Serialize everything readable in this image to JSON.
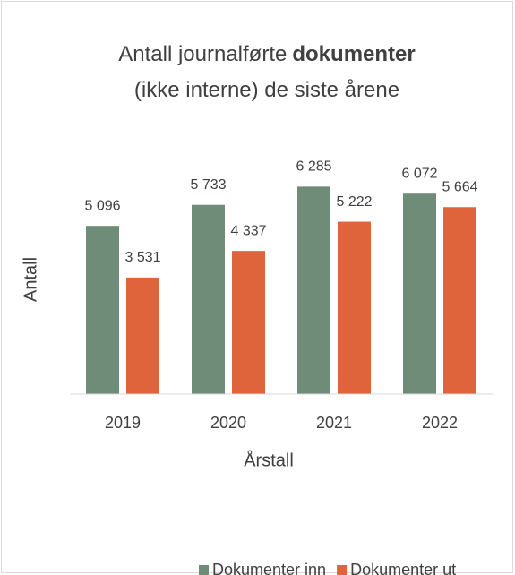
{
  "chart_data": {
    "type": "bar",
    "title": [
      [
        {
          "text": "Antall journalførte"
        },
        {
          "text": "dokumenter",
          "bold": true
        }
      ],
      [
        {
          "text": "(ikke interne) de siste årene"
        }
      ]
    ],
    "x_label": "Årstall",
    "y_label": "Antall",
    "categories": [
      "2019",
      "2020",
      "2021",
      "2022"
    ],
    "series": [
      {
        "name": "Dokumenter inn",
        "color": "#6f8c79",
        "values": [
          5096,
          5733,
          6285,
          6072
        ],
        "value_labels": [
          "5 096",
          "5 733",
          "6 285",
          "6 072"
        ]
      },
      {
        "name": "Dokumenter ut",
        "color": "#e0643b",
        "values": [
          3531,
          4337,
          5222,
          5664
        ],
        "value_labels": [
          "3 531",
          "4 337",
          "5 222",
          "5 664"
        ]
      }
    ],
    "ylim": [
      0,
      7000
    ],
    "grid": false,
    "legend": "bottom"
  }
}
